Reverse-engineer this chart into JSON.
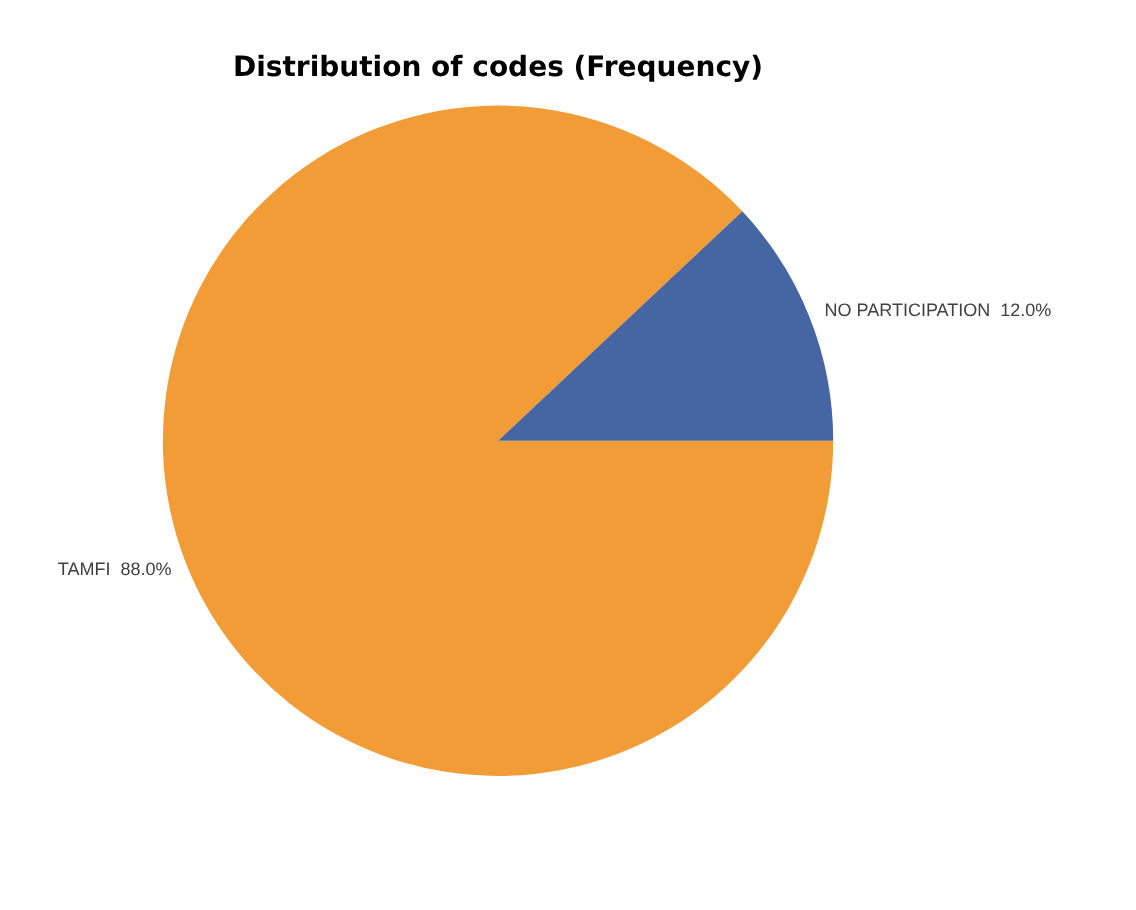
{
  "chart_data": {
    "type": "pie",
    "title": "Distribution of codes (Frequency)",
    "categories": [
      "TAMFI",
      "NO PARTICIPATION"
    ],
    "values": [
      88.0,
      12.0
    ],
    "colors": [
      "#f29c38",
      "#4566a3"
    ],
    "value_labels": [
      "88.0%",
      "12.0%"
    ],
    "legend": false
  }
}
